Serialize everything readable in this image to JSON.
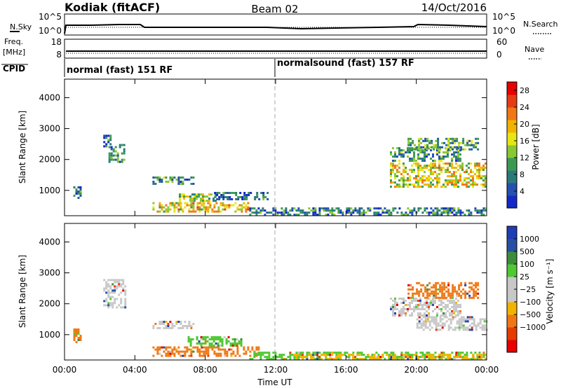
{
  "header": {
    "station": "Kodiak (fitACF)",
    "beam": "Beam 02",
    "date": "14/Oct/2016"
  },
  "strips": {
    "nsky_label": "N.Sky",
    "nsky_ticks": [
      "10^5",
      "10^0"
    ],
    "nsearch_label": "N.Search",
    "nsearch_ticks": [
      "10^5",
      "10^0"
    ],
    "freq_label": "Freq.",
    "freq_unit": "[MHz]",
    "freq_ticks": [
      "18",
      "8"
    ],
    "nave_label": "Nave",
    "nave_ticks": [
      "60",
      "0"
    ],
    "cpid_label": "CPID",
    "cpid_segments": [
      {
        "name": "normal (fast) 151 RF",
        "start_hour": 0
      },
      {
        "name": "normalsound (fast) 157 RF",
        "start_hour": 12
      }
    ]
  },
  "chart_data": [
    {
      "type": "heatmap",
      "title": "Power",
      "ylabel": "Slant Range [km]",
      "xlabel": "",
      "x_range_hours": [
        0,
        24
      ],
      "ylim": [
        180,
        4600
      ],
      "y_ticks": [
        1000,
        2000,
        3000,
        4000
      ],
      "colorbar": {
        "label": "Power [dB]",
        "ticks": [
          "4",
          "8",
          "12",
          "16",
          "20",
          "24",
          "28"
        ],
        "range": [
          0,
          30
        ],
        "colors": [
          "#1428c8",
          "#2450b0",
          "#2a7a7a",
          "#3c9a50",
          "#88c832",
          "#e6e614",
          "#f0b400",
          "#f07814",
          "#e63c14",
          "#e60000"
        ]
      },
      "echo_regions": [
        {
          "t0": 0.5,
          "t1": 0.9,
          "r0": 750,
          "r1": 1200,
          "level": 0.2
        },
        {
          "t0": 2.5,
          "t1": 3.4,
          "r0": 1900,
          "r1": 2500,
          "level": 0.3
        },
        {
          "t0": 2.2,
          "t1": 2.6,
          "r0": 2400,
          "r1": 2800,
          "level": 0.2
        },
        {
          "t0": 5.0,
          "t1": 7.3,
          "r0": 1200,
          "r1": 1450,
          "level": 0.3
        },
        {
          "t0": 5.0,
          "t1": 10.5,
          "r0": 300,
          "r1": 620,
          "level": 0.6
        },
        {
          "t0": 6.5,
          "t1": 8.6,
          "r0": 650,
          "r1": 900,
          "level": 0.45
        },
        {
          "t0": 8.5,
          "t1": 11.5,
          "r0": 700,
          "r1": 950,
          "level": 0.2
        },
        {
          "t0": 10.5,
          "t1": 24,
          "r0": 220,
          "r1": 450,
          "level": 0.25
        },
        {
          "t0": 18.5,
          "t1": 24,
          "r0": 1150,
          "r1": 1900,
          "level": 0.55
        },
        {
          "t0": 18.5,
          "t1": 22.5,
          "r0": 1950,
          "r1": 2400,
          "level": 0.3
        },
        {
          "t0": 19.5,
          "t1": 23.5,
          "r0": 2300,
          "r1": 2700,
          "level": 0.35
        }
      ]
    },
    {
      "type": "heatmap",
      "title": "Velocity",
      "ylabel": "Slant Range [km]",
      "xlabel": "Time UT",
      "x_ticks": [
        "00:00",
        "04:00",
        "08:00",
        "12:00",
        "16:00",
        "20:00",
        "00:00"
      ],
      "x_range_hours": [
        0,
        24
      ],
      "ylim": [
        180,
        4600
      ],
      "y_ticks": [
        1000,
        2000,
        3000,
        4000
      ],
      "colorbar": {
        "label": "Velocity [m s⁻¹]",
        "ticks": [
          "1000",
          "500",
          "100",
          "25",
          "−25",
          "−100",
          "−500",
          "−1000"
        ],
        "colors": [
          "#e60000",
          "#e63c00",
          "#f07814",
          "#f0b400",
          "#c8c8c8",
          "#c8c8c8",
          "#50c832",
          "#3c8c3c",
          "#2850a0",
          "#1e3cb4"
        ]
      },
      "echo_regions": [
        {
          "t0": 0.5,
          "t1": 0.9,
          "r0": 750,
          "r1": 1200,
          "color": "#f07814"
        },
        {
          "t0": 2.2,
          "t1": 3.4,
          "r0": 1900,
          "r1": 2800,
          "color": "#c8c8c8"
        },
        {
          "t0": 5.0,
          "t1": 7.3,
          "r0": 1200,
          "r1": 1450,
          "color": "#c8c8c8"
        },
        {
          "t0": 5.0,
          "t1": 11.0,
          "r0": 300,
          "r1": 620,
          "color": "#f07814"
        },
        {
          "t0": 7.0,
          "t1": 10.0,
          "r0": 650,
          "r1": 950,
          "color": "#50c832"
        },
        {
          "t0": 10.5,
          "t1": 24,
          "r0": 220,
          "r1": 450,
          "color": "#50c832"
        },
        {
          "t0": 13.0,
          "t1": 24,
          "r0": 220,
          "r1": 380,
          "color": "#f0b400"
        },
        {
          "t0": 20.0,
          "t1": 24,
          "r0": 1150,
          "r1": 1600,
          "color": "#c8c8c8"
        },
        {
          "t0": 18.5,
          "t1": 22.5,
          "r0": 1650,
          "r1": 2200,
          "color": "#c8c8c8"
        },
        {
          "t0": 19.5,
          "t1": 23.5,
          "r0": 2200,
          "r1": 2700,
          "color": "#f07814"
        }
      ]
    }
  ]
}
